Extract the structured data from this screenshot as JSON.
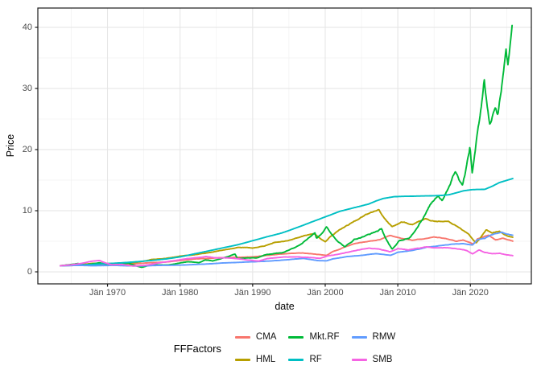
{
  "chart_data": {
    "type": "line",
    "title": "",
    "xlabel": "date",
    "ylabel": "Price",
    "legend_title": "FFFactors",
    "legend_position": "bottom",
    "x_unit": "decimal_year",
    "xlim": [
      1960.4,
      2028.4
    ],
    "ylim": [
      -1.97,
      43.16
    ],
    "x_ticks": [
      {
        "year": 1970,
        "label": "Jän 1970"
      },
      {
        "year": 1980,
        "label": "Jän 1980"
      },
      {
        "year": 1990,
        "label": "Jän 1990"
      },
      {
        "year": 2000,
        "label": "Jän 2000"
      },
      {
        "year": 2010,
        "label": "Jän 2010"
      },
      {
        "year": 2020,
        "label": "Jän 2020"
      }
    ],
    "y_ticks": [
      {
        "value": 0,
        "label": "0"
      },
      {
        "value": 10,
        "label": "10"
      },
      {
        "value": 20,
        "label": "20"
      },
      {
        "value": 30,
        "label": "30"
      },
      {
        "value": 40,
        "label": "40"
      }
    ],
    "x_minor_gridlines": [
      1965,
      1975,
      1985,
      1995,
      2005,
      2015,
      2025
    ],
    "y_minor_gridlines": [
      5,
      15,
      25,
      35
    ],
    "grid": true,
    "panel_border_color": "#1a1a1a",
    "grid_major_color": "#e6e6e6",
    "grid_minor_color": "#f1f1f1",
    "axis_text_color": "#4d4d4d",
    "series": [
      {
        "name": "CMA",
        "color": "#F8766D",
        "wiggle": 0.8,
        "points": [
          [
            1963.5,
            1.0
          ],
          [
            1966,
            1.05
          ],
          [
            1968,
            1.2
          ],
          [
            1970,
            1.2
          ],
          [
            1972,
            1.15
          ],
          [
            1974,
            1.35
          ],
          [
            1976,
            1.5
          ],
          [
            1978,
            1.6
          ],
          [
            1980,
            1.85
          ],
          [
            1982,
            2.1
          ],
          [
            1984,
            2.2
          ],
          [
            1986,
            2.35
          ],
          [
            1988,
            2.4
          ],
          [
            1990,
            2.45
          ],
          [
            1992,
            2.7
          ],
          [
            1995,
            3.0
          ],
          [
            1997,
            3.1
          ],
          [
            1999,
            2.85
          ],
          [
            2000.2,
            2.7
          ],
          [
            2001,
            3.3
          ],
          [
            2002.8,
            4.1
          ],
          [
            2004,
            4.6
          ],
          [
            2006,
            5.0
          ],
          [
            2007.5,
            5.3
          ],
          [
            2008.9,
            5.9
          ],
          [
            2010,
            5.6
          ],
          [
            2012,
            5.2
          ],
          [
            2013.5,
            5.4
          ],
          [
            2015,
            5.7
          ],
          [
            2016.5,
            5.5
          ],
          [
            2018,
            5.0
          ],
          [
            2019,
            5.2
          ],
          [
            2020.4,
            4.6
          ],
          [
            2021,
            5.4
          ],
          [
            2022.5,
            6.0
          ],
          [
            2023.5,
            5.2
          ],
          [
            2024.5,
            5.5
          ],
          [
            2025.9,
            5.0
          ]
        ]
      },
      {
        "name": "HML",
        "color": "#B79F00",
        "wiggle": 0.9,
        "points": [
          [
            1963.5,
            1.0
          ],
          [
            1966,
            1.15
          ],
          [
            1968,
            1.4
          ],
          [
            1970,
            1.35
          ],
          [
            1972,
            1.3
          ],
          [
            1974,
            1.55
          ],
          [
            1976,
            2.0
          ],
          [
            1978,
            2.2
          ],
          [
            1980,
            2.55
          ],
          [
            1982,
            2.8
          ],
          [
            1984,
            3.15
          ],
          [
            1986,
            3.6
          ],
          [
            1988,
            4.0
          ],
          [
            1990,
            3.9
          ],
          [
            1991.5,
            4.2
          ],
          [
            1993,
            4.8
          ],
          [
            1995,
            5.1
          ],
          [
            1997,
            5.9
          ],
          [
            1998.5,
            6.2
          ],
          [
            2000.0,
            4.9
          ],
          [
            2000.6,
            5.6
          ],
          [
            2002,
            6.9
          ],
          [
            2004,
            8.3
          ],
          [
            2005.5,
            9.3
          ],
          [
            2007.4,
            10.2
          ],
          [
            2008,
            9.0
          ],
          [
            2009.2,
            7.4
          ],
          [
            2010.5,
            8.1
          ],
          [
            2012,
            7.8
          ],
          [
            2013.8,
            8.6
          ],
          [
            2015.5,
            8.2
          ],
          [
            2017,
            8.3
          ],
          [
            2018.5,
            7.2
          ],
          [
            2019.8,
            6.1
          ],
          [
            2020.8,
            4.75
          ],
          [
            2022.2,
            6.9
          ],
          [
            2023,
            6.3
          ],
          [
            2024,
            6.7
          ],
          [
            2025,
            5.9
          ],
          [
            2025.9,
            5.6
          ]
        ]
      },
      {
        "name": "Mkt.RF",
        "color": "#00BA38",
        "wiggle": 1.6,
        "points": [
          [
            1963.5,
            1.0
          ],
          [
            1965.9,
            1.35
          ],
          [
            1966.8,
            1.1
          ],
          [
            1968.9,
            1.5
          ],
          [
            1970.5,
            1.05
          ],
          [
            1972.9,
            1.45
          ],
          [
            1974.7,
            0.75
          ],
          [
            1976,
            1.15
          ],
          [
            1978.2,
            1.1
          ],
          [
            1980.9,
            1.65
          ],
          [
            1982.6,
            1.5
          ],
          [
            1983.5,
            1.95
          ],
          [
            1984.5,
            1.8
          ],
          [
            1987.6,
            2.9
          ],
          [
            1987.9,
            2.2
          ],
          [
            1990.6,
            2.3
          ],
          [
            1992,
            2.9
          ],
          [
            1994,
            3.1
          ],
          [
            1995,
            3.6
          ],
          [
            1996.5,
            4.5
          ],
          [
            1997.7,
            5.6
          ],
          [
            1998.6,
            6.4
          ],
          [
            1998.8,
            5.5
          ],
          [
            2000.2,
            7.3
          ],
          [
            2001.7,
            5.1
          ],
          [
            2002.7,
            4.1
          ],
          [
            2004,
            5.3
          ],
          [
            2006,
            6.1
          ],
          [
            2007.8,
            7.0
          ],
          [
            2009.2,
            3.7
          ],
          [
            2010.2,
            5.1
          ],
          [
            2011.5,
            5.4
          ],
          [
            2013,
            8.0
          ],
          [
            2014.5,
            11.0
          ],
          [
            2015.5,
            12.6
          ],
          [
            2016.1,
            11.8
          ],
          [
            2017.9,
            16.5
          ],
          [
            2018.9,
            14.3
          ],
          [
            2019.95,
            20.5
          ],
          [
            2020.25,
            16.3
          ],
          [
            2021,
            23.0
          ],
          [
            2021.9,
            31.5
          ],
          [
            2022.7,
            24.0
          ],
          [
            2023.4,
            27.2
          ],
          [
            2023.8,
            25.8
          ],
          [
            2024.9,
            37.0
          ],
          [
            2025.15,
            34.0
          ],
          [
            2025.75,
            40.7
          ]
        ]
      },
      {
        "name": "RF",
        "color": "#00BFC4",
        "wiggle": 0.05,
        "points": [
          [
            1963.5,
            1.0
          ],
          [
            1966,
            1.1
          ],
          [
            1968,
            1.22
          ],
          [
            1970,
            1.35
          ],
          [
            1972,
            1.48
          ],
          [
            1974,
            1.65
          ],
          [
            1976,
            1.85
          ],
          [
            1978,
            2.1
          ],
          [
            1980,
            2.45
          ],
          [
            1982,
            2.95
          ],
          [
            1984,
            3.45
          ],
          [
            1986,
            3.95
          ],
          [
            1988,
            4.45
          ],
          [
            1990,
            5.1
          ],
          [
            1992,
            5.75
          ],
          [
            1994,
            6.35
          ],
          [
            1996,
            7.2
          ],
          [
            1998,
            8.1
          ],
          [
            2000,
            9.0
          ],
          [
            2002,
            9.9
          ],
          [
            2004,
            10.5
          ],
          [
            2006,
            11.1
          ],
          [
            2007,
            11.6
          ],
          [
            2008,
            12.0
          ],
          [
            2009.5,
            12.3
          ],
          [
            2011,
            12.35
          ],
          [
            2013,
            12.4
          ],
          [
            2015,
            12.45
          ],
          [
            2016,
            12.5
          ],
          [
            2017,
            12.6
          ],
          [
            2018,
            12.9
          ],
          [
            2019,
            13.25
          ],
          [
            2020.25,
            13.45
          ],
          [
            2022,
            13.5
          ],
          [
            2023,
            14.0
          ],
          [
            2024,
            14.6
          ],
          [
            2025.9,
            15.3
          ]
        ]
      },
      {
        "name": "RMW",
        "color": "#619CFF",
        "wiggle": 0.7,
        "points": [
          [
            1963.5,
            1.0
          ],
          [
            1966,
            1.05
          ],
          [
            1968,
            1.0
          ],
          [
            1971,
            1.05
          ],
          [
            1974,
            0.95
          ],
          [
            1977,
            1.05
          ],
          [
            1980,
            1.1
          ],
          [
            1983,
            1.25
          ],
          [
            1986,
            1.45
          ],
          [
            1989,
            1.6
          ],
          [
            1992,
            1.75
          ],
          [
            1995,
            2.0
          ],
          [
            1997,
            2.2
          ],
          [
            1999,
            1.85
          ],
          [
            2000.2,
            1.8
          ],
          [
            2001,
            2.1
          ],
          [
            2003,
            2.5
          ],
          [
            2005,
            2.7
          ],
          [
            2007,
            3.0
          ],
          [
            2009,
            2.7
          ],
          [
            2010,
            3.2
          ],
          [
            2012,
            3.5
          ],
          [
            2014,
            4.0
          ],
          [
            2016,
            4.3
          ],
          [
            2017.5,
            4.5
          ],
          [
            2019,
            4.6
          ],
          [
            2020.3,
            4.4
          ],
          [
            2021,
            5.3
          ],
          [
            2022,
            5.5
          ],
          [
            2022.8,
            6.0
          ],
          [
            2023.5,
            6.3
          ],
          [
            2024.3,
            6.45
          ],
          [
            2025,
            6.2
          ],
          [
            2025.9,
            5.95
          ]
        ]
      },
      {
        "name": "SMB",
        "color": "#F564E3",
        "wiggle": 1.0,
        "points": [
          [
            1963.5,
            1.0
          ],
          [
            1965,
            1.15
          ],
          [
            1966.5,
            1.4
          ],
          [
            1967.9,
            1.75
          ],
          [
            1968.9,
            1.85
          ],
          [
            1970.6,
            1.15
          ],
          [
            1972,
            1.2
          ],
          [
            1973.5,
            0.95
          ],
          [
            1975,
            1.05
          ],
          [
            1977,
            1.45
          ],
          [
            1979,
            1.8
          ],
          [
            1981,
            2.15
          ],
          [
            1983.5,
            2.5
          ],
          [
            1985,
            2.3
          ],
          [
            1987,
            2.25
          ],
          [
            1989,
            2.0
          ],
          [
            1990.8,
            1.75
          ],
          [
            1992,
            2.15
          ],
          [
            1994,
            2.4
          ],
          [
            1996,
            2.45
          ],
          [
            1998,
            2.35
          ],
          [
            1999.3,
            2.2
          ],
          [
            2000.3,
            2.6
          ],
          [
            2001.5,
            2.8
          ],
          [
            2003,
            3.2
          ],
          [
            2004.5,
            3.6
          ],
          [
            2006,
            3.85
          ],
          [
            2007.5,
            3.7
          ],
          [
            2008.9,
            3.3
          ],
          [
            2010,
            3.8
          ],
          [
            2011.5,
            3.6
          ],
          [
            2013.9,
            4.1
          ],
          [
            2015.5,
            3.9
          ],
          [
            2017,
            3.95
          ],
          [
            2018.5,
            3.7
          ],
          [
            2019.5,
            3.5
          ],
          [
            2020.3,
            2.95
          ],
          [
            2021.2,
            3.6
          ],
          [
            2022,
            3.2
          ],
          [
            2023,
            2.95
          ],
          [
            2024,
            3.05
          ],
          [
            2025,
            2.8
          ],
          [
            2025.9,
            2.65
          ]
        ]
      }
    ]
  }
}
